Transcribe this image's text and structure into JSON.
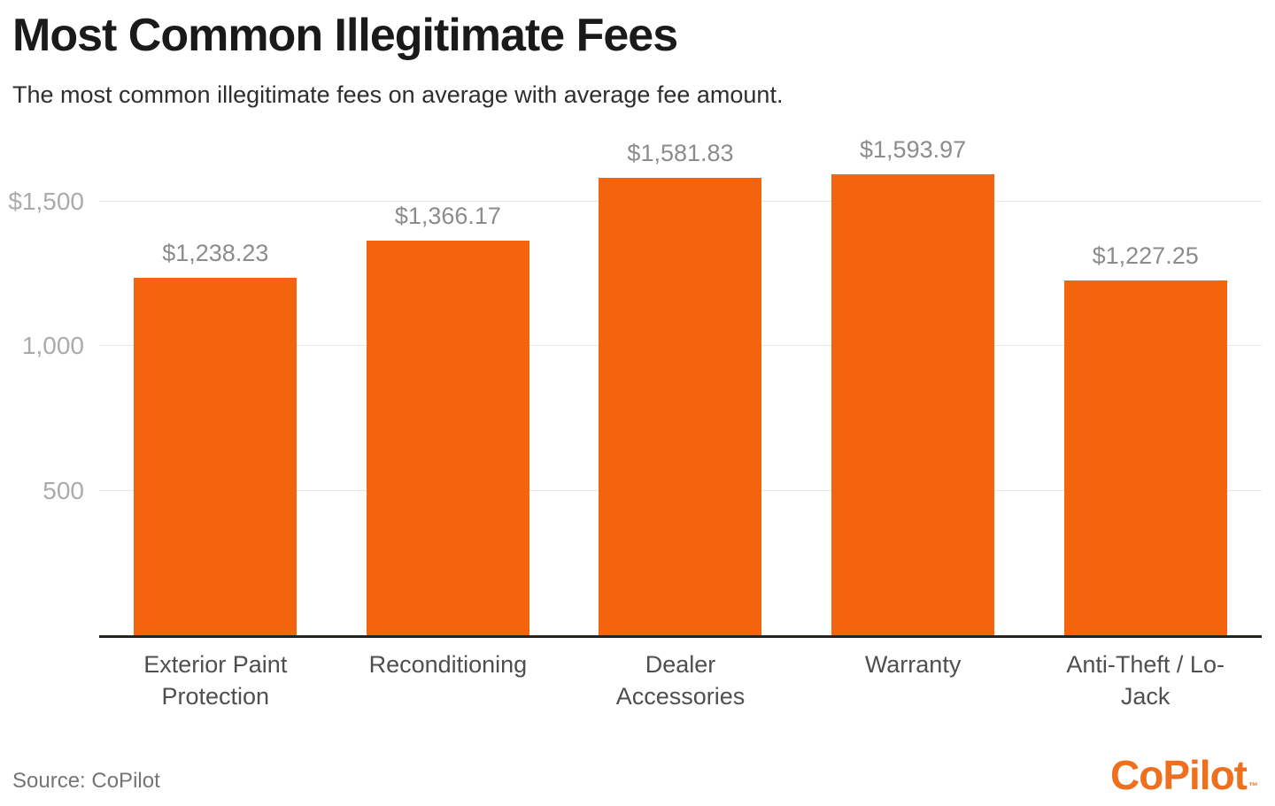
{
  "page": {
    "background": "#ffffff"
  },
  "chart_data": {
    "type": "bar",
    "title": "Most Common Illegitimate Fees",
    "subtitle": "The most common illegitimate fees on average with average fee amount.",
    "categories": [
      "Exterior Paint Protection",
      "Reconditioning",
      "Dealer Accessories",
      "Warranty",
      "Anti-Theft / Lo-Jack"
    ],
    "values": [
      1238.23,
      1366.17,
      1581.83,
      1593.97,
      1227.25
    ],
    "value_labels": [
      "$1,238.23",
      "$1,366.17",
      "$1,581.83",
      "$1,593.97",
      "$1,227.25"
    ],
    "yticks": [
      {
        "value": 1500,
        "label": "$1,500"
      },
      {
        "value": 1000,
        "label": "1,000"
      },
      {
        "value": 500,
        "label": "500"
      }
    ],
    "ylim": [
      0,
      1739
    ],
    "grid": true,
    "legend": false,
    "bar_color": "#F4640C"
  },
  "footer": {
    "source_label": "Source: CoPilot",
    "logo_text": "CoPilot",
    "logo_tm": "™"
  },
  "colors": {
    "page_bg": "#FFFFFF",
    "bar": "#F4640C",
    "logo_orange": "#EE6F1E",
    "title": "#1A1A1A",
    "subtitle": "#2E2E2E",
    "tick_label": "#ABABAB",
    "value_label": "#8C8C8C",
    "category_label": "#4F4F4F",
    "gridline": "#E6E6E6",
    "axis_line": "#26241F",
    "source": "#757575"
  }
}
